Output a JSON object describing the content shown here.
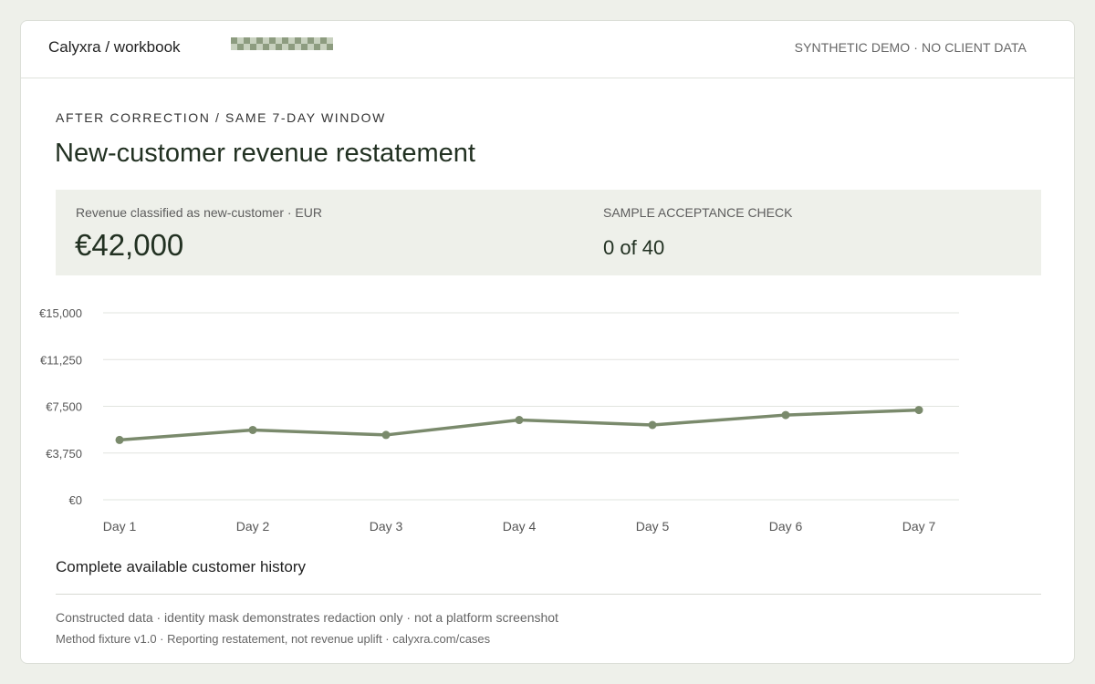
{
  "header": {
    "brand": "Calyxra / workbook",
    "notice": "SYNTHETIC DEMO · NO CLIENT DATA"
  },
  "section": {
    "eyebrow": "AFTER CORRECTION / SAME 7-DAY WINDOW",
    "title": "New-customer revenue restatement"
  },
  "metrics": {
    "revenue_label": "Revenue classified as new-customer · EUR",
    "revenue_value": "€42,000",
    "check_label": "SAMPLE ACCEPTANCE CHECK",
    "check_value": "0 of 40"
  },
  "colors": {
    "line": "#7a8a6c",
    "grid": "#e2e4df",
    "axis_text": "#555555",
    "mask_dark": "#8d9c80",
    "mask_light": "#c8d1bf"
  },
  "chart_data": {
    "type": "line",
    "categories": [
      "Day 1",
      "Day 2",
      "Day 3",
      "Day 4",
      "Day 5",
      "Day 6",
      "Day 7"
    ],
    "series": [
      {
        "values": [
          4800,
          5600,
          5200,
          6400,
          6000,
          6800,
          7200
        ]
      }
    ],
    "yticks": [
      "€0",
      "€3,750",
      "€7,500",
      "€11,250",
      "€15,000"
    ],
    "ylim": [
      0,
      15000
    ],
    "grid": true,
    "caption": "Complete available customer history"
  },
  "footer": {
    "line1": "Constructed data · identity mask demonstrates redaction only · not a platform screenshot",
    "line2": "Method fixture v1.0 · Reporting restatement, not revenue uplift · calyxra.com/cases"
  }
}
